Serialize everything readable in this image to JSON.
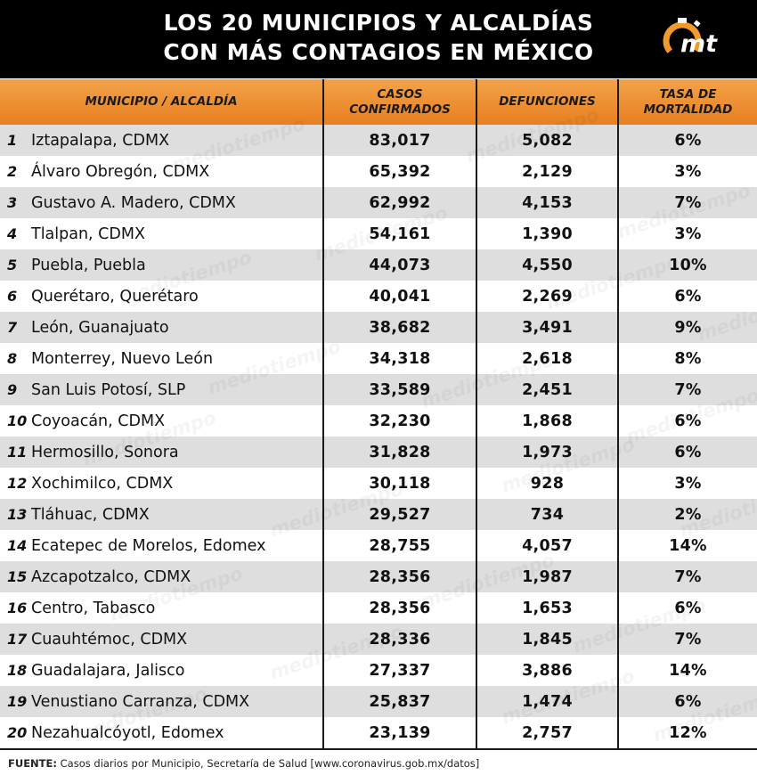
{
  "title": {
    "line1": "LOS 20 MUNICIPIOS Y ALCALDÍAS",
    "line2": "CON MÁS CONTAGIOS EN MÉXICO"
  },
  "logo": {
    "text": "mt",
    "icon": "stopwatch-logo-icon",
    "accent": "#f39a2a"
  },
  "watermark": "mediotiempo",
  "colors": {
    "header": "#ee8d2e",
    "stripe": "#dedede",
    "title_bg": "#000000"
  },
  "chart_data": {
    "type": "table",
    "columns": [
      "MUNICIPIO / ALCALDÍA",
      "CASOS CONFIRMADOS",
      "DEFUNCIONES",
      "TASA DE MORTALIDAD"
    ],
    "rows": [
      {
        "rank": "1",
        "name": "Iztapalapa, CDMX",
        "cases": "83,017",
        "deaths": "5,082",
        "rate": "6%"
      },
      {
        "rank": "2",
        "name": "Álvaro Obregón, CDMX",
        "cases": "65,392",
        "deaths": "2,129",
        "rate": "3%"
      },
      {
        "rank": "3",
        "name": "Gustavo A. Madero, CDMX",
        "cases": "62,992",
        "deaths": "4,153",
        "rate": "7%"
      },
      {
        "rank": "4",
        "name": "Tlalpan, CDMX",
        "cases": "54,161",
        "deaths": "1,390",
        "rate": "3%"
      },
      {
        "rank": "5",
        "name": "Puebla, Puebla",
        "cases": "44,073",
        "deaths": "4,550",
        "rate": "10%"
      },
      {
        "rank": "6",
        "name": "Querétaro, Querétaro",
        "cases": "40,041",
        "deaths": "2,269",
        "rate": "6%"
      },
      {
        "rank": "7",
        "name": "León, Guanajuato",
        "cases": "38,682",
        "deaths": "3,491",
        "rate": "9%"
      },
      {
        "rank": "8",
        "name": "Monterrey, Nuevo León",
        "cases": "34,318",
        "deaths": "2,618",
        "rate": "8%"
      },
      {
        "rank": "9",
        "name": "San Luis Potosí, SLP",
        "cases": "33,589",
        "deaths": "2,451",
        "rate": "7%"
      },
      {
        "rank": "10",
        "name": "Coyoacán, CDMX",
        "cases": "32,230",
        "deaths": "1,868",
        "rate": "6%"
      },
      {
        "rank": "11",
        "name": "Hermosillo, Sonora",
        "cases": "31,828",
        "deaths": "1,973",
        "rate": "6%"
      },
      {
        "rank": "12",
        "name": "Xochimilco, CDMX",
        "cases": "30,118",
        "deaths": "928",
        "rate": "3%"
      },
      {
        "rank": "13",
        "name": "Tláhuac, CDMX",
        "cases": "29,527",
        "deaths": "734",
        "rate": "2%"
      },
      {
        "rank": "14",
        "name": "Ecatepec de Morelos, Edomex",
        "cases": "28,755",
        "deaths": "4,057",
        "rate": "14%"
      },
      {
        "rank": "15",
        "name": "Azcapotzalco, CDMX",
        "cases": "28,356",
        "deaths": "1,987",
        "rate": "7%"
      },
      {
        "rank": "16",
        "name": "Centro, Tabasco",
        "cases": "28,356",
        "deaths": "1,653",
        "rate": "6%"
      },
      {
        "rank": "17",
        "name": "Cuauhtémoc, CDMX",
        "cases": "28,336",
        "deaths": "1,845",
        "rate": "7%"
      },
      {
        "rank": "18",
        "name": "Guadalajara, Jalisco",
        "cases": "27,337",
        "deaths": "3,886",
        "rate": "14%"
      },
      {
        "rank": "19",
        "name": "Venustiano Carranza, CDMX",
        "cases": "25,837",
        "deaths": "1,474",
        "rate": "6%"
      },
      {
        "rank": "20",
        "name": "Nezahualcóyotl, Edomex",
        "cases": "23,139",
        "deaths": "2,757",
        "rate": "12%"
      }
    ]
  },
  "footer": {
    "label": "FUENTE:",
    "text": "Casos diarios por Municipio, Secretaría de Salud [www.coronavirus.gob.mx/datos]"
  }
}
